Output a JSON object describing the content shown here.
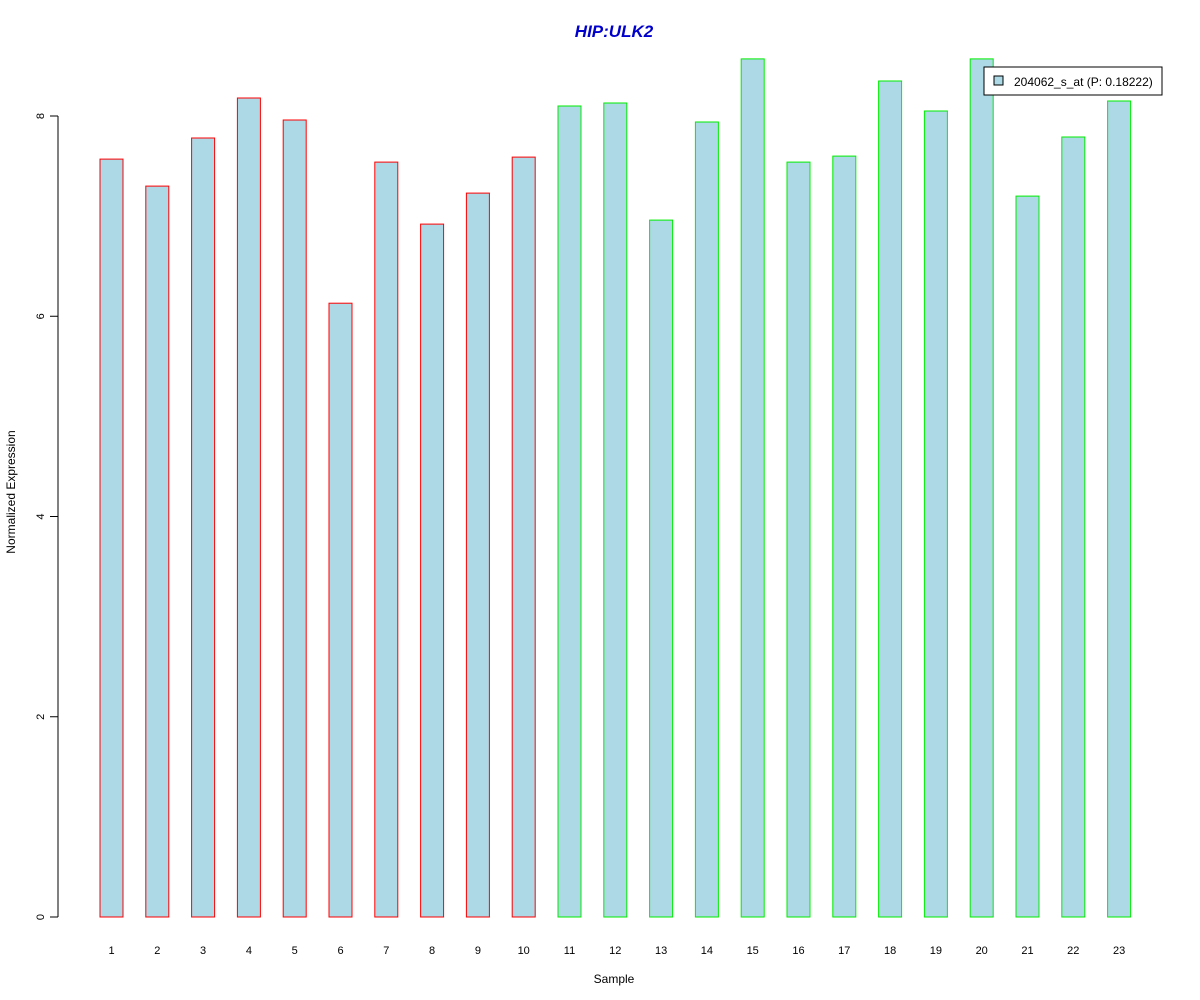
{
  "chart_data": {
    "type": "bar",
    "title": "HIP:ULK2",
    "xlabel": "Sample",
    "ylabel": "Normalized Expression",
    "categories": [
      "1",
      "2",
      "3",
      "4",
      "5",
      "6",
      "7",
      "8",
      "9",
      "10",
      "11",
      "12",
      "13",
      "14",
      "15",
      "16",
      "17",
      "18",
      "19",
      "20",
      "21",
      "22",
      "23"
    ],
    "values": [
      7.57,
      7.3,
      7.78,
      8.18,
      7.96,
      6.13,
      7.54,
      6.92,
      7.23,
      7.59,
      8.1,
      8.13,
      6.96,
      7.94,
      8.57,
      7.54,
      7.6,
      8.35,
      8.05,
      8.57,
      7.2,
      7.79,
      8.15
    ],
    "group_of_bar": [
      "a",
      "a",
      "a",
      "a",
      "a",
      "a",
      "a",
      "a",
      "a",
      "a",
      "b",
      "b",
      "b",
      "b",
      "b",
      "b",
      "b",
      "b",
      "b",
      "b",
      "b",
      "b",
      "b"
    ],
    "ylim": [
      0,
      8.6
    ],
    "yticks": [
      0,
      2,
      4,
      6,
      8
    ],
    "legend": {
      "label": "204062_s_at (P: 0.18222)",
      "position": "top-right"
    },
    "grid": false,
    "colors": {
      "title": "#0000cc",
      "fill": "#add8e6",
      "group_a_border": "#ff0000",
      "group_b_border": "#00ee00",
      "axis": "#000000"
    }
  }
}
